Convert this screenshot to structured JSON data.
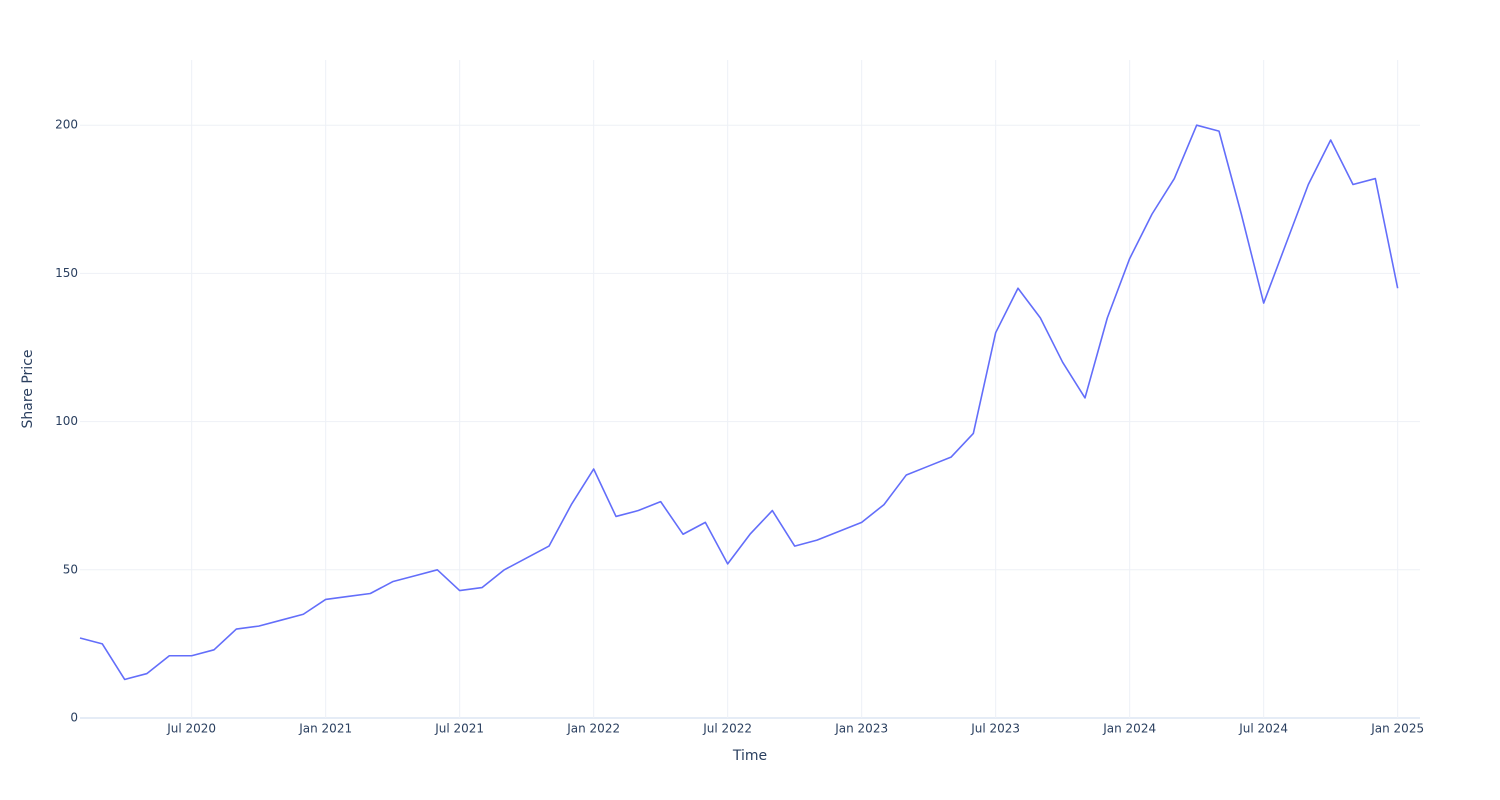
{
  "chart_data": {
    "type": "line",
    "x_label": "Time",
    "y_label": "Share Price",
    "x": [
      "2020-02",
      "2020-03",
      "2020-04",
      "2020-05",
      "2020-06",
      "2020-07",
      "2020-08",
      "2020-09",
      "2020-10",
      "2020-11",
      "2020-12",
      "2021-01",
      "2021-02",
      "2021-03",
      "2021-04",
      "2021-05",
      "2021-06",
      "2021-07",
      "2021-08",
      "2021-09",
      "2021-10",
      "2021-11",
      "2021-12",
      "2022-01",
      "2022-02",
      "2022-03",
      "2022-04",
      "2022-05",
      "2022-06",
      "2022-07",
      "2022-08",
      "2022-09",
      "2022-10",
      "2022-11",
      "2022-12",
      "2023-01",
      "2023-02",
      "2023-03",
      "2023-04",
      "2023-05",
      "2023-06",
      "2023-07",
      "2023-08",
      "2023-09",
      "2023-10",
      "2023-11",
      "2023-12",
      "2024-01",
      "2024-02",
      "2024-03",
      "2024-04",
      "2024-05",
      "2024-06",
      "2024-07",
      "2024-08",
      "2024-09",
      "2024-10",
      "2024-11",
      "2024-12",
      "2025-01"
    ],
    "series": [
      {
        "name": "Share Price",
        "color": "#636efa",
        "values": [
          27,
          25,
          13,
          15,
          21,
          21,
          23,
          30,
          31,
          33,
          35,
          40,
          41,
          42,
          46,
          48,
          50,
          43,
          44,
          50,
          54,
          58,
          72,
          84,
          68,
          70,
          73,
          62,
          66,
          52,
          62,
          70,
          58,
          60,
          63,
          66,
          72,
          82,
          85,
          88,
          96,
          130,
          145,
          135,
          120,
          108,
          135,
          155,
          170,
          182,
          200,
          198,
          170,
          140,
          160,
          180,
          195,
          180,
          182,
          145
        ]
      }
    ],
    "xlim": [
      "2020-02",
      "2025-02"
    ],
    "xticks": [
      {
        "value": "2020-07",
        "label": "Jul 2020"
      },
      {
        "value": "2021-01",
        "label": "Jan 2021"
      },
      {
        "value": "2021-07",
        "label": "Jul 2021"
      },
      {
        "value": "2022-01",
        "label": "Jan 2022"
      },
      {
        "value": "2022-07",
        "label": "Jul 2022"
      },
      {
        "value": "2023-01",
        "label": "Jan 2023"
      },
      {
        "value": "2023-07",
        "label": "Jul 2023"
      },
      {
        "value": "2024-01",
        "label": "Jan 2024"
      },
      {
        "value": "2024-07",
        "label": "Jul 2024"
      },
      {
        "value": "2025-01",
        "label": "Jan 2025"
      }
    ],
    "ylim": [
      0,
      222
    ],
    "yticks": [
      0,
      50,
      100,
      150,
      200
    ],
    "grid": true
  }
}
